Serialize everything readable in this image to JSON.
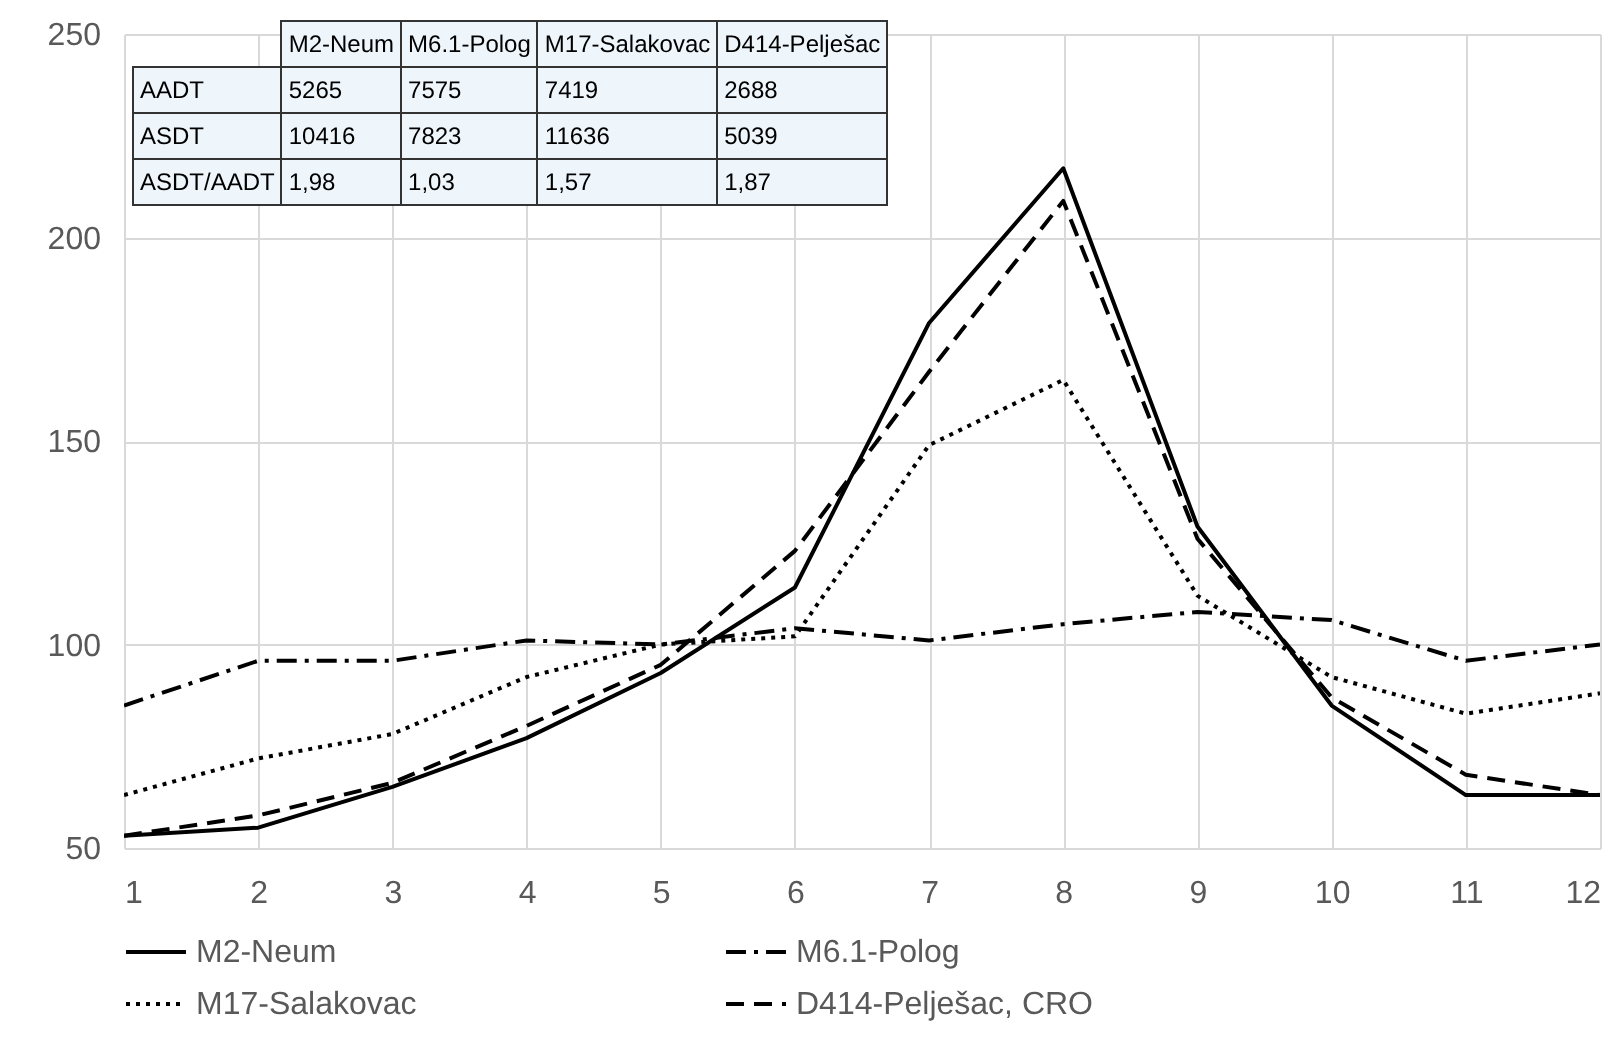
{
  "chart_data": {
    "type": "line",
    "x": [
      1,
      2,
      3,
      4,
      5,
      6,
      7,
      8,
      9,
      10,
      11,
      12
    ],
    "series": [
      {
        "name": "M2-Neum",
        "color": "#000000",
        "line_style": "solid",
        "values": [
          53,
          55,
          65,
          77,
          93,
          114,
          179,
          217,
          129,
          85,
          63,
          63
        ]
      },
      {
        "name": "M6.1-Polog",
        "color": "#000000",
        "line_style": "dashdot",
        "values": [
          85,
          96,
          96,
          101,
          100,
          104,
          101,
          105,
          108,
          106,
          96,
          100
        ]
      },
      {
        "name": "M17-Salakovac",
        "color": "#000000",
        "line_style": "dotted",
        "values": [
          63,
          72,
          78,
          92,
          100,
          102,
          149,
          165,
          112,
          92,
          83,
          88
        ]
      },
      {
        "name": "D414-Pelješac, CRO",
        "color": "#000000",
        "line_style": "dashed",
        "values": [
          53,
          58,
          66,
          80,
          95,
          123,
          167,
          209,
          126,
          87,
          68,
          63
        ]
      }
    ],
    "xlim": [
      1,
      12
    ],
    "xticks": [
      1,
      2,
      3,
      4,
      5,
      6,
      7,
      8,
      9,
      10,
      11,
      12
    ],
    "ylim": [
      50,
      250
    ],
    "yticks": [
      50,
      100,
      150,
      200,
      250
    ],
    "grid": true,
    "legend": "bottom",
    "marker": "none",
    "annotations": [
      "M2-Neum",
      "M6.1-Polog",
      "M17-Salakovac",
      "D414-Pelješac",
      "AADT",
      "5265",
      "7575",
      "7419",
      "2688",
      "ASDT",
      "10416",
      "7823",
      "11636",
      "5039",
      "ASDT/AADT",
      "1,98",
      "1,03",
      "1,57",
      "1,87"
    ]
  }
}
